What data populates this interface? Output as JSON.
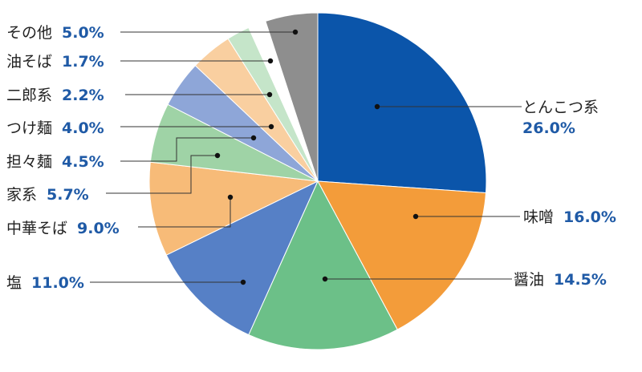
{
  "chart_data": {
    "type": "pie",
    "title": "",
    "slices": [
      {
        "label": "とんこつ系",
        "value": 26.0,
        "display": "26.0%",
        "color": "#0b55aa"
      },
      {
        "label": "味噌",
        "value": 16.0,
        "display": "16.0%",
        "color": "#f39c3a"
      },
      {
        "label": "醤油",
        "value": 14.5,
        "display": "14.5%",
        "color": "#6cc088"
      },
      {
        "label": "塩",
        "value": 11.0,
        "display": "11.0%",
        "color": "#5680c6"
      },
      {
        "label": "中華そば",
        "value": 9.0,
        "display": "9.0%",
        "color": "#f7bb78"
      },
      {
        "label": "家系",
        "value": 5.7,
        "display": "5.7%",
        "color": "#9fd3a6"
      },
      {
        "label": "担々麺",
        "value": 4.5,
        "display": "4.5%",
        "color": "#8ea6d8"
      },
      {
        "label": "つけ麺",
        "value": 4.0,
        "display": "4.0%",
        "color": "#f9cfa0"
      },
      {
        "label": "二郎系",
        "value": 2.2,
        "display": "2.2%",
        "color": "#c5e5c9"
      },
      {
        "label": "油そば",
        "value": 1.7,
        "display": "1.7%",
        "color": "#ffffff"
      },
      {
        "label": "その他",
        "value": 5.0,
        "display": "5.0%",
        "color": "#8e8e8e"
      }
    ]
  }
}
